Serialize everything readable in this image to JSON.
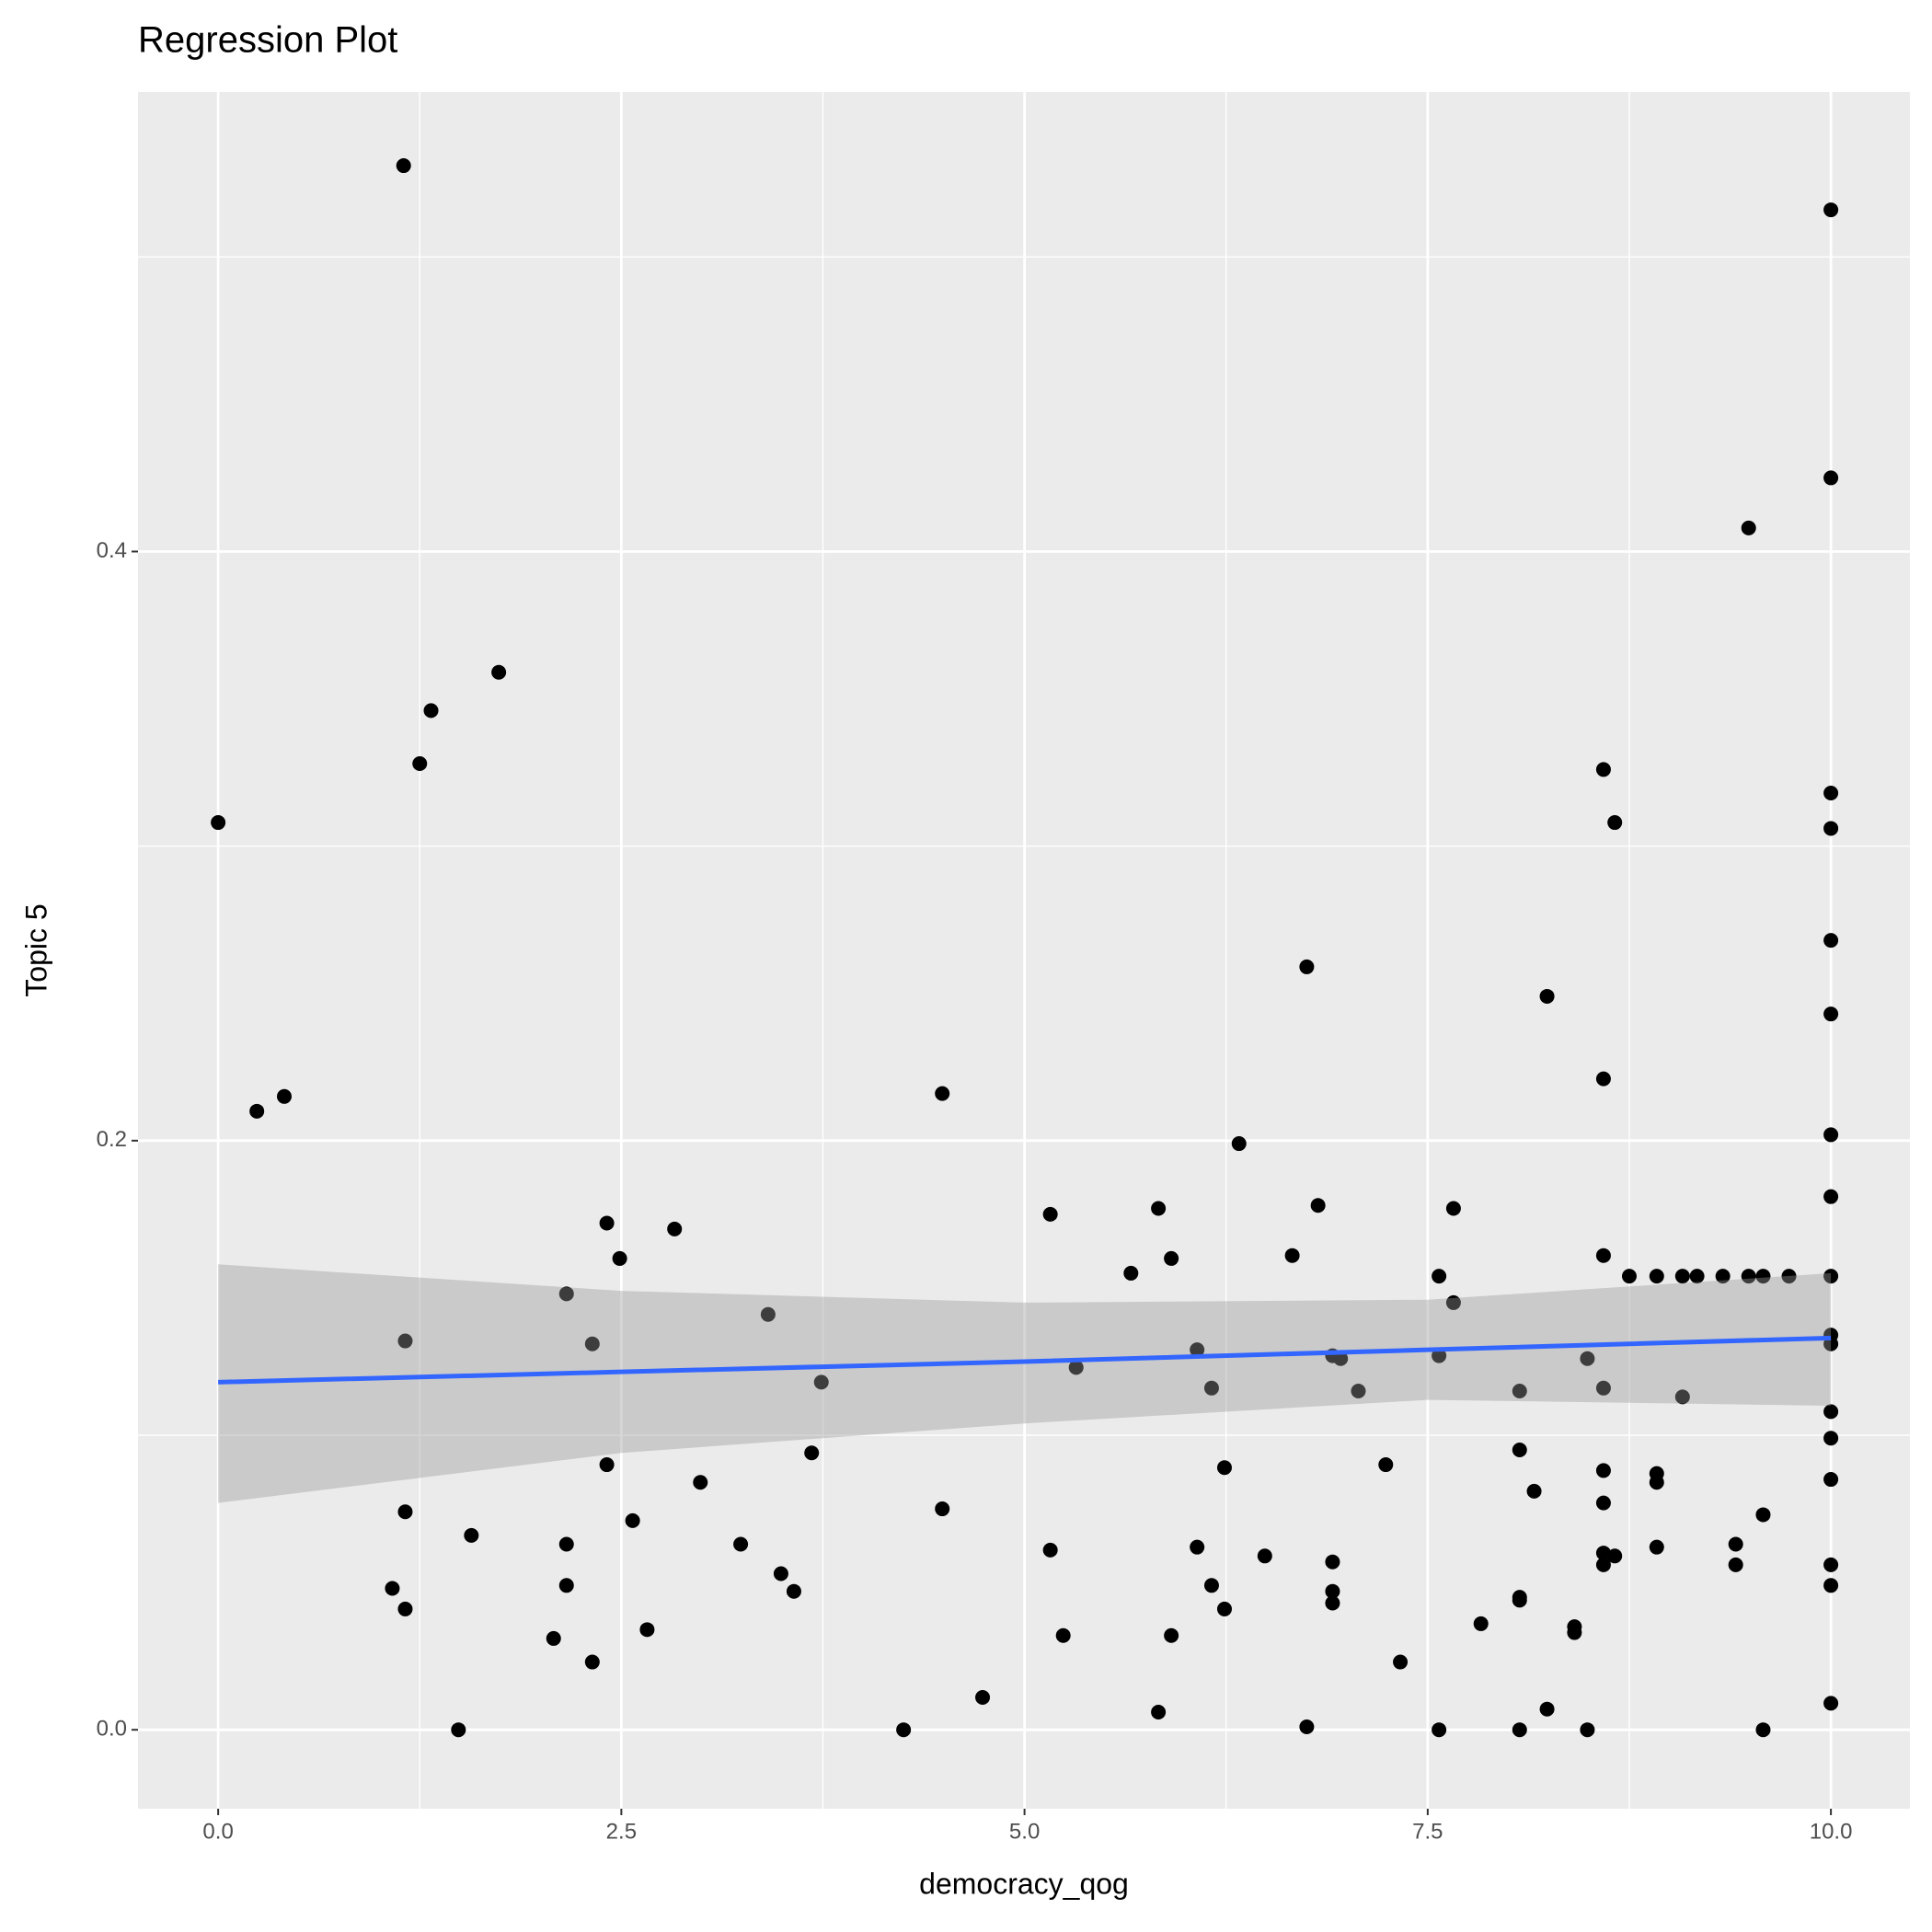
{
  "chart_data": {
    "type": "scatter",
    "title": "Regression Plot",
    "x_label": "democracy_qog",
    "y_label": "Topic 5",
    "xlim": [
      -0.497,
      10.49
    ],
    "ylim": [
      -0.0268,
      0.556
    ],
    "xticks": [
      {
        "value": 0,
        "label": "0.0"
      },
      2.5,
      {
        "value": 5,
        "label": "5.0"
      },
      7.5,
      {
        "value": 10,
        "label": "10.0"
      }
    ],
    "yticks": [
      {
        "value": 0,
        "label": "0.0"
      },
      0.2,
      0.4
    ],
    "x_minor_grid": [
      1.25,
      3.75,
      6.25,
      8.75
    ],
    "y_minor_grid": [
      0.1,
      0.3,
      0.5
    ],
    "grid": true,
    "background": "#ebebeb",
    "point_color": "#000000",
    "x": [
      1.15,
      10,
      10,
      9.49,
      1.74,
      1.32,
      1.25,
      0,
      8.59,
      10,
      8.66,
      10,
      10,
      6.75,
      8.24,
      10,
      8.59,
      0.24,
      0.41,
      4.49,
      10,
      6.33,
      10,
      6.82,
      5.83,
      7.66,
      5.16,
      2.41,
      2.83,
      2.49,
      5.91,
      6.66,
      8.59,
      5.66,
      7.57,
      8.75,
      8.92,
      9.08,
      9.17,
      9.33,
      9.49,
      9.58,
      9.74,
      10,
      2.16,
      7.66,
      3.41,
      1.16,
      2.32,
      10,
      10,
      6.07,
      6.91,
      6.96,
      7.57,
      8.49,
      5.32,
      3.74,
      6.16,
      7.07,
      8.07,
      8.59,
      9.08,
      10,
      10,
      8.07,
      3.68,
      2.41,
      7.24,
      6.24,
      8.59,
      8.92,
      2.99,
      8.92,
      10,
      8.16,
      8.59,
      1.16,
      4.49,
      9.58,
      2.57,
      1.57,
      2.16,
      3.24,
      8.92,
      9.41,
      5.16,
      6.07,
      8.59,
      6.49,
      8.66,
      6.91,
      9.41,
      8.59,
      10,
      3.49,
      2.16,
      6.16,
      10,
      1.08,
      3.57,
      6.91,
      8.07,
      8.07,
      6.91,
      6.24,
      1.16,
      7.83,
      2.66,
      8.41,
      8.41,
      5.24,
      5.91,
      2.08,
      2.32,
      7.33,
      4.74,
      10,
      8.24,
      5.83,
      1.49,
      4.25,
      6.75,
      7.57,
      8.07,
      8.49,
      9.58
    ],
    "values": [
      0.531,
      0.516,
      0.425,
      0.408,
      0.359,
      0.346,
      0.328,
      0.308,
      0.326,
      0.318,
      0.308,
      0.306,
      0.268,
      0.259,
      0.249,
      0.243,
      0.221,
      0.21,
      0.215,
      0.216,
      0.202,
      0.199,
      0.181,
      0.178,
      0.177,
      0.177,
      0.175,
      0.172,
      0.17,
      0.16,
      0.16,
      0.161,
      0.161,
      0.155,
      0.154,
      0.154,
      0.154,
      0.154,
      0.154,
      0.154,
      0.154,
      0.154,
      0.154,
      0.154,
      0.148,
      0.145,
      0.141,
      0.132,
      0.131,
      0.134,
      0.131,
      0.129,
      0.127,
      0.126,
      0.127,
      0.126,
      0.123,
      0.118,
      0.116,
      0.115,
      0.115,
      0.116,
      0.113,
      0.108,
      0.099,
      0.095,
      0.094,
      0.09,
      0.09,
      0.089,
      0.088,
      0.087,
      0.084,
      0.084,
      0.085,
      0.081,
      0.077,
      0.074,
      0.075,
      0.073,
      0.071,
      0.066,
      0.063,
      0.063,
      0.062,
      0.063,
      0.061,
      0.062,
      0.06,
      0.059,
      0.059,
      0.057,
      0.056,
      0.056,
      0.056,
      0.053,
      0.049,
      0.049,
      0.049,
      0.048,
      0.047,
      0.047,
      0.045,
      0.044,
      0.043,
      0.041,
      0.041,
      0.036,
      0.034,
      0.035,
      0.033,
      0.032,
      0.032,
      0.031,
      0.023,
      0.023,
      0.011,
      0.009,
      0.007,
      0.006,
      0.0,
      0.0,
      0.001,
      0.0,
      0.0,
      0.0,
      0.0
    ],
    "fit": {
      "color": "#3366ff",
      "band_color": "#999999",
      "x": [
        0,
        2.5,
        5,
        7.5,
        10
      ],
      "y": [
        0.118,
        0.1215,
        0.125,
        0.129,
        0.133
      ],
      "ymin": [
        0.077,
        0.094,
        0.104,
        0.112,
        0.11
      ],
      "ymax": [
        0.158,
        0.149,
        0.145,
        0.146,
        0.155
      ]
    }
  }
}
